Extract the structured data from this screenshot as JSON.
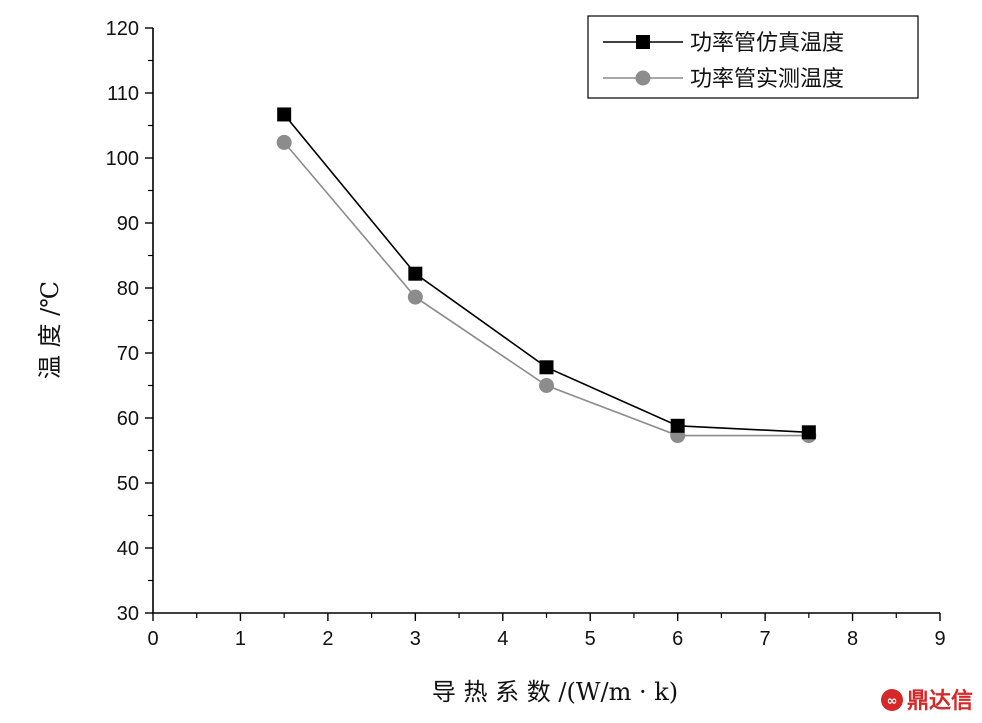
{
  "chart_data": {
    "type": "line",
    "title": "",
    "xlabel": "导 热 系 数 /(W/m · k)",
    "ylabel": "温 度 /℃",
    "xlim": [
      0,
      9
    ],
    "ylim": [
      30,
      120
    ],
    "x_ticks": [
      0,
      1,
      2,
      3,
      4,
      5,
      6,
      7,
      8,
      9
    ],
    "y_ticks": [
      30,
      40,
      50,
      60,
      70,
      80,
      90,
      100,
      110,
      120
    ],
    "grid": false,
    "legend_position": "top-right",
    "series": [
      {
        "name": "功率管仿真温度",
        "marker": "square",
        "color": "#000000",
        "x": [
          1.5,
          3,
          4.5,
          6,
          7.5
        ],
        "y": [
          106.7,
          82.2,
          67.8,
          58.8,
          57.8
        ]
      },
      {
        "name": "功率管实测温度",
        "marker": "circle",
        "color": "#8c8c8c",
        "x": [
          1.5,
          3,
          4.5,
          6,
          7.5
        ],
        "y": [
          102.4,
          78.6,
          65.0,
          57.3,
          57.3
        ]
      }
    ]
  },
  "watermark": {
    "text": "鼎达信",
    "icon": "logo-icon",
    "color": "#d62828"
  }
}
